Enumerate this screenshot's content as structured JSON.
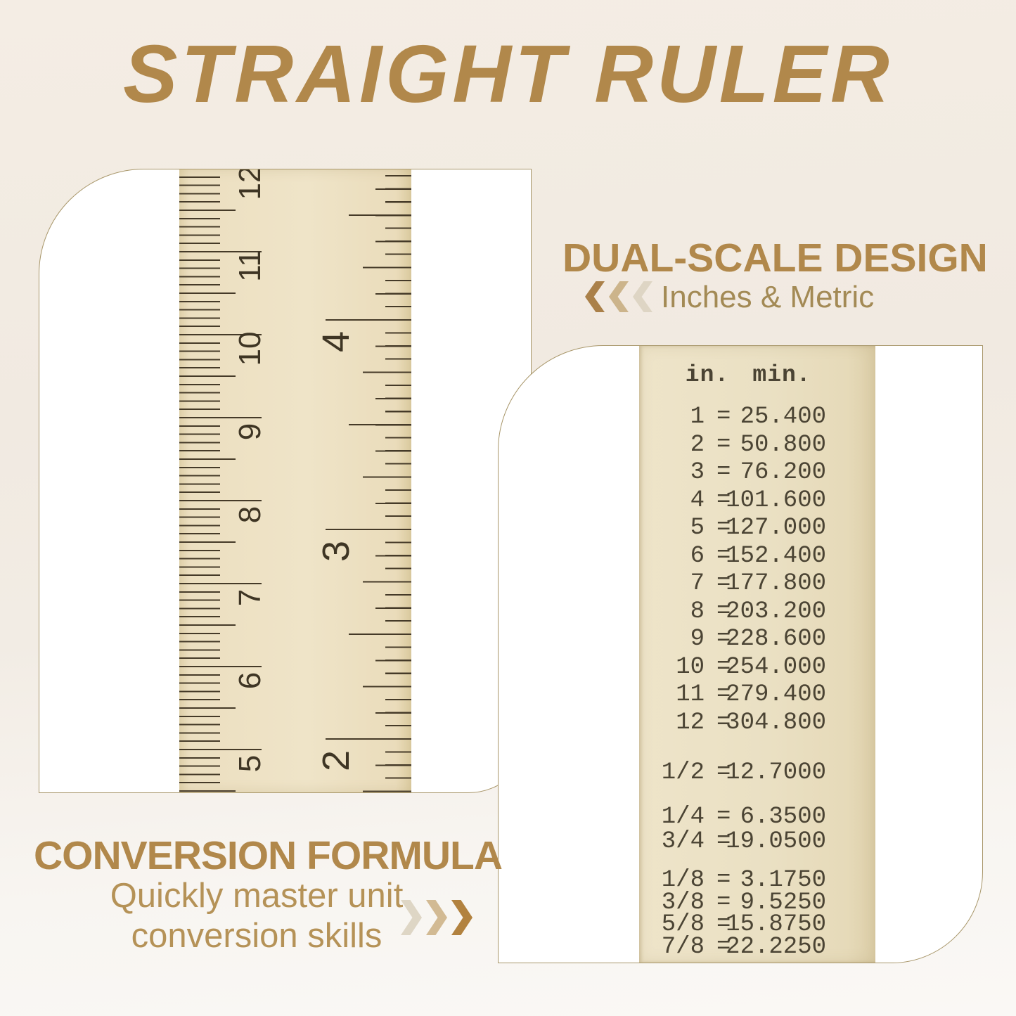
{
  "title": "STRAIGHT RULER",
  "dual_scale": {
    "heading": "DUAL-SCALE DESIGN",
    "subheading": "Inches & Metric"
  },
  "conversion_formula": {
    "heading": "CONVERSION FORMULA",
    "subtitle_line1": "Quickly master unit",
    "subtitle_line2": "conversion skills"
  },
  "ruler_photo": {
    "cm_scale_labels": [
      "12",
      "11",
      "10",
      "9",
      "8",
      "7",
      "6",
      "5"
    ],
    "inch_scale_labels": [
      "4",
      "3",
      "2"
    ]
  },
  "conversion_table": {
    "header": {
      "col1": "in.",
      "col2": "min."
    },
    "equals": "=",
    "groups": [
      {
        "rows": [
          {
            "label": "1",
            "value": "25.400"
          },
          {
            "label": "2",
            "value": "50.800"
          },
          {
            "label": "3",
            "value": "76.200"
          },
          {
            "label": "4",
            "value": "101.600"
          },
          {
            "label": "5",
            "value": "127.000"
          },
          {
            "label": "6",
            "value": "152.400"
          },
          {
            "label": "7",
            "value": "177.800"
          },
          {
            "label": "8",
            "value": "203.200"
          },
          {
            "label": "9",
            "value": "228.600"
          },
          {
            "label": "10",
            "value": "254.000"
          },
          {
            "label": "11",
            "value": "279.400"
          },
          {
            "label": "12",
            "value": "304.800"
          }
        ]
      },
      {
        "rows": [
          {
            "label": "1/2",
            "value": "12.7000"
          }
        ]
      },
      {
        "rows": [
          {
            "label": "1/4",
            "value": "6.3500"
          },
          {
            "label": "3/4",
            "value": "19.0500"
          }
        ]
      },
      {
        "rows": [
          {
            "label": "1/8",
            "value": "3.1750"
          },
          {
            "label": "3/8",
            "value": "9.5250"
          },
          {
            "label": "5/8",
            "value": "15.8750"
          },
          {
            "label": "7/8",
            "value": "22.2250"
          }
        ]
      }
    ]
  },
  "colors": {
    "accent_gold": "#b1884b",
    "subtitle_gold": "#b59257",
    "ruler_cream": "#ebe0c2",
    "tick_brown": "#453a28",
    "card_border": "#a89669",
    "table_text": "#4b4434",
    "chevron_dark": "#b2823f",
    "chevron_mid": "#d2ba93",
    "chevron_light": "#ded6c5"
  }
}
